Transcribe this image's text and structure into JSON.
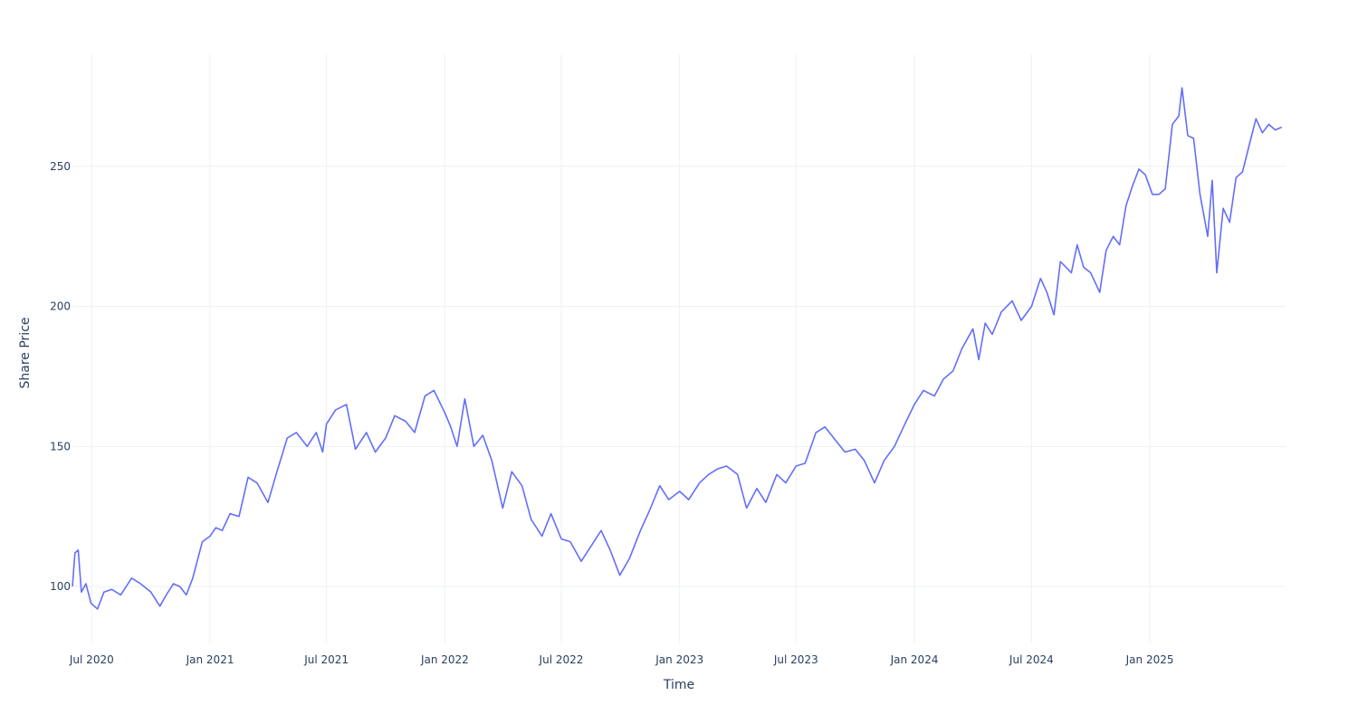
{
  "chart_data": {
    "type": "line",
    "title": "",
    "xlabel": "Time",
    "ylabel": "Share Price",
    "grid": true,
    "legend": "none",
    "line_color": "#636efa",
    "xlim": [
      "2020-06-01",
      "2025-07-31"
    ],
    "ylim": [
      80,
      290
    ],
    "y_ticks": [
      100,
      150,
      200,
      250
    ],
    "x_ticks": [
      {
        "date": "2020-07-01",
        "label": "Jul 2020"
      },
      {
        "date": "2021-01-01",
        "label": "Jan 2021"
      },
      {
        "date": "2021-07-01",
        "label": "Jul 2021"
      },
      {
        "date": "2022-01-01",
        "label": "Jan 2022"
      },
      {
        "date": "2022-07-01",
        "label": "Jul 2022"
      },
      {
        "date": "2023-01-01",
        "label": "Jan 2023"
      },
      {
        "date": "2023-07-01",
        "label": "Jul 2023"
      },
      {
        "date": "2024-01-01",
        "label": "Jan 2024"
      },
      {
        "date": "2024-07-01",
        "label": "Jul 2024"
      },
      {
        "date": "2025-01-01",
        "label": "Jan 2025"
      }
    ],
    "series": [
      {
        "x": [
          "2020-06-01",
          "2020-06-05",
          "2020-06-10",
          "2020-06-15",
          "2020-06-22",
          "2020-06-30",
          "2020-07-10",
          "2020-07-20",
          "2020-08-01",
          "2020-08-15",
          "2020-09-01",
          "2020-09-15",
          "2020-10-01",
          "2020-10-15",
          "2020-10-25",
          "2020-11-05",
          "2020-11-15",
          "2020-11-25",
          "2020-12-05",
          "2020-12-20",
          "2021-01-01",
          "2021-01-10",
          "2021-01-20",
          "2021-02-01",
          "2021-02-15",
          "2021-03-01",
          "2021-03-15",
          "2021-04-01",
          "2021-04-15",
          "2021-05-01",
          "2021-05-15",
          "2021-06-01",
          "2021-06-15",
          "2021-06-25",
          "2021-07-01",
          "2021-07-15",
          "2021-08-01",
          "2021-08-15",
          "2021-09-01",
          "2021-09-15",
          "2021-10-01",
          "2021-10-15",
          "2021-11-01",
          "2021-11-15",
          "2021-12-01",
          "2021-12-15",
          "2022-01-01",
          "2022-01-10",
          "2022-01-20",
          "2022-02-01",
          "2022-02-15",
          "2022-03-01",
          "2022-03-15",
          "2022-04-01",
          "2022-04-15",
          "2022-05-01",
          "2022-05-15",
          "2022-06-01",
          "2022-06-15",
          "2022-07-01",
          "2022-07-15",
          "2022-08-01",
          "2022-08-15",
          "2022-09-01",
          "2022-09-15",
          "2022-09-30",
          "2022-10-15",
          "2022-11-01",
          "2022-11-15",
          "2022-12-01",
          "2022-12-15",
          "2023-01-01",
          "2023-01-15",
          "2023-02-01",
          "2023-02-15",
          "2023-03-01",
          "2023-03-15",
          "2023-04-01",
          "2023-04-15",
          "2023-05-01",
          "2023-05-15",
          "2023-06-01",
          "2023-06-15",
          "2023-07-01",
          "2023-07-15",
          "2023-08-01",
          "2023-08-15",
          "2023-09-01",
          "2023-09-15",
          "2023-10-01",
          "2023-10-15",
          "2023-10-31",
          "2023-11-15",
          "2023-12-01",
          "2023-12-15",
          "2024-01-01",
          "2024-01-15",
          "2024-02-01",
          "2024-02-15",
          "2024-03-01",
          "2024-03-15",
          "2024-04-01",
          "2024-04-10",
          "2024-04-20",
          "2024-05-01",
          "2024-05-15",
          "2024-06-01",
          "2024-06-15",
          "2024-07-01",
          "2024-07-15",
          "2024-07-25",
          "2024-08-05",
          "2024-08-15",
          "2024-09-01",
          "2024-09-10",
          "2024-09-20",
          "2024-10-01",
          "2024-10-15",
          "2024-10-25",
          "2024-11-05",
          "2024-11-15",
          "2024-11-25",
          "2024-12-05",
          "2024-12-15",
          "2024-12-25",
          "2025-01-05",
          "2025-01-15",
          "2025-01-25",
          "2025-02-05",
          "2025-02-15",
          "2025-02-20",
          "2025-03-01",
          "2025-03-10",
          "2025-03-20",
          "2025-04-01",
          "2025-04-08",
          "2025-04-15",
          "2025-04-25",
          "2025-05-05",
          "2025-05-15",
          "2025-05-25",
          "2025-06-05",
          "2025-06-15",
          "2025-06-25",
          "2025-07-05",
          "2025-07-15",
          "2025-07-25"
        ],
        "y": [
          100,
          112,
          113,
          98,
          101,
          94,
          92,
          98,
          99,
          97,
          103,
          101,
          98,
          93,
          97,
          101,
          100,
          97,
          103,
          116,
          118,
          121,
          120,
          126,
          125,
          139,
          137,
          130,
          141,
          153,
          155,
          150,
          155,
          148,
          158,
          163,
          165,
          149,
          155,
          148,
          153,
          161,
          159,
          155,
          168,
          170,
          162,
          157,
          150,
          167,
          150,
          154,
          145,
          128,
          141,
          136,
          124,
          118,
          126,
          117,
          116,
          109,
          114,
          120,
          113,
          104,
          110,
          120,
          127,
          136,
          131,
          134,
          131,
          137,
          140,
          142,
          143,
          140,
          128,
          135,
          130,
          140,
          137,
          143,
          144,
          155,
          157,
          152,
          148,
          149,
          145,
          137,
          145,
          150,
          157,
          165,
          170,
          168,
          174,
          177,
          185,
          192,
          181,
          194,
          190,
          198,
          202,
          195,
          200,
          210,
          205,
          197,
          216,
          212,
          222,
          214,
          212,
          205,
          220,
          225,
          222,
          236,
          243,
          249,
          247,
          240,
          240,
          242,
          265,
          268,
          278,
          261,
          260,
          240,
          225,
          245,
          212,
          235,
          230,
          246,
          248,
          258,
          267,
          262,
          265,
          263,
          264
        ]
      }
    ]
  }
}
